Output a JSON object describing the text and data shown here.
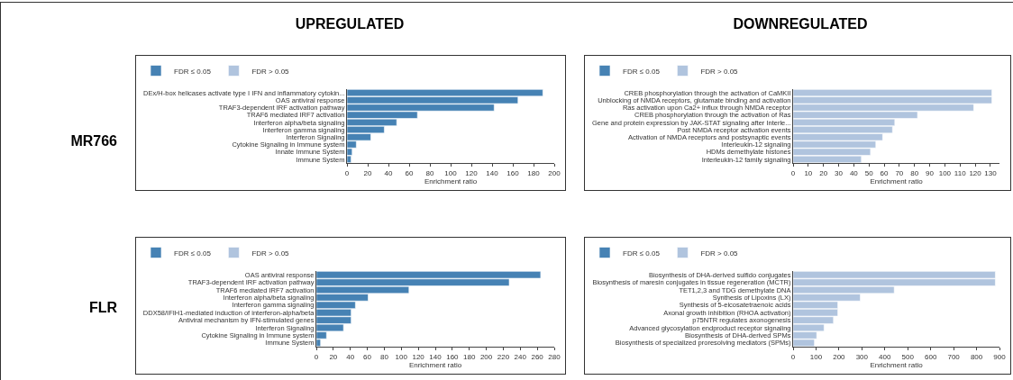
{
  "chart_data": [
    {
      "type": "bar",
      "orientation": "horizontal",
      "title": "UPREGULATED",
      "annotations": [
        "MR766"
      ],
      "xlabel": "Enrichment ratio",
      "legend": "top left",
      "grid": false,
      "categories": [
        "DEx/H-box helicases activate type I IFN and inflammatory cytokin...",
        "OAS antiviral response",
        "TRAF3-dependent IRF activation pathway",
        "TRAF6 mediated IRF7 activation",
        "Interferon alpha/beta signaling",
        "Interferon gamma signaling",
        "Interferon Signaling",
        "Cytokine Signaling in Immune system",
        "Innate Immune System",
        "Immune System"
      ],
      "series": [
        {
          "name": "FDR ≤ 0.05",
          "color": "#4682b4",
          "values": [
            189,
            165,
            142,
            68,
            48,
            36,
            23,
            9,
            5,
            4
          ]
        },
        {
          "name": "FDR > 0.05",
          "color": "#b0c4de",
          "values": [
            null,
            null,
            null,
            null,
            null,
            null,
            null,
            null,
            null,
            null
          ]
        }
      ],
      "xlim": [
        0,
        200
      ],
      "xticks": [
        0,
        20,
        40,
        60,
        80,
        100,
        120,
        140,
        160,
        180,
        200
      ]
    },
    {
      "type": "bar",
      "orientation": "horizontal",
      "title": "DOWNREGULATED",
      "xlabel": "Enrichment ratio",
      "legend": "top left",
      "grid": false,
      "categories": [
        "CREB phosphorylation through the activation of CaMKII",
        "Unblocking of NMDA receptors, glutamate binding and activation",
        "Ras activation upon Ca2+ influx through NMDA receptor",
        "CREB phosphorylation through the activation of Ras",
        "Gene and protein expression by JAK-STAT signaling after Interle...",
        "Post NMDA receptor activation events",
        "Activation of NMDA receptors and postsynaptic events",
        "Interleukin-12 signaling",
        "HDMs demethylate histones",
        "Interleukin-12 family signaling"
      ],
      "series": [
        {
          "name": "FDR ≤ 0.05",
          "color": "#4682b4",
          "values": [
            null,
            null,
            null,
            null,
            null,
            null,
            null,
            null,
            null,
            null
          ]
        },
        {
          "name": "FDR > 0.05",
          "color": "#b0c4de",
          "values": [
            131,
            131,
            119,
            82,
            67,
            65.5,
            59,
            54.5,
            51,
            45
          ]
        }
      ],
      "xlim": [
        0,
        136
      ],
      "xticks": [
        0,
        10,
        20,
        30,
        40,
        50,
        60,
        70,
        80,
        90,
        100,
        110,
        120,
        130
      ]
    },
    {
      "type": "bar",
      "orientation": "horizontal",
      "annotations": [
        "FLR"
      ],
      "xlabel": "Enrichment ratio",
      "legend": "top left",
      "grid": false,
      "categories": [
        "OAS antiviral response",
        "TRAF3-dependent IRF activation pathway",
        "TRAF6 mediated IRF7 activation",
        "Interferon alpha/beta signaling",
        "Interferon gamma signaling",
        "DDX58/IFIH1-mediated induction of interferon-alpha/beta",
        "Antiviral mechanism by IFN-stimulated genes",
        "Interferon Signaling",
        "Cytokine Signaling in Immune system",
        "Immune System"
      ],
      "series": [
        {
          "name": "FDR ≤ 0.05",
          "color": "#4682b4",
          "values": [
            264,
            227,
            109,
            61,
            46,
            41,
            41,
            32,
            12,
            5
          ]
        },
        {
          "name": "FDR > 0.05",
          "color": "#b0c4de",
          "values": [
            null,
            null,
            null,
            null,
            null,
            null,
            null,
            null,
            null,
            null
          ]
        }
      ],
      "xlim": [
        0,
        280
      ],
      "xticks": [
        0,
        20,
        40,
        60,
        80,
        100,
        120,
        140,
        160,
        180,
        200,
        220,
        240,
        260,
        280
      ]
    },
    {
      "type": "bar",
      "orientation": "horizontal",
      "xlabel": "Enrichment ratio",
      "legend": "top left",
      "grid": false,
      "categories": [
        "Biosynthesis of DHA-derived sulfido conjugates",
        "Biosynthesis of maresin conjugates in tissue regeneration (MCTR)",
        "TET1,2,3 and TDG demethylate DNA",
        "Synthesis of Lipoxins (LX)",
        "Synthesis of 5-eicosatetraenoic acids",
        "Axonal growth inhibition (RHOA activation)",
        "p75NTR regulates axonogenesis",
        "Advanced glycosylation endproduct receptor signaling",
        "Biosynthesis of DHA-derived SPMs",
        "Biosynthesis of specialized proresolving mediators (SPMs)"
      ],
      "series": [
        {
          "name": "FDR ≤ 0.05",
          "color": "#4682b4",
          "values": [
            null,
            null,
            null,
            null,
            null,
            null,
            null,
            null,
            null,
            null
          ]
        },
        {
          "name": "FDR > 0.05",
          "color": "#b0c4de",
          "values": [
            882,
            882,
            441,
            293,
            195,
            195,
            176,
            135,
            103,
            93
          ]
        }
      ],
      "xlim": [
        0,
        900
      ],
      "xticks": [
        0,
        100,
        200,
        300,
        400,
        500,
        600,
        700,
        800,
        900
      ]
    }
  ]
}
